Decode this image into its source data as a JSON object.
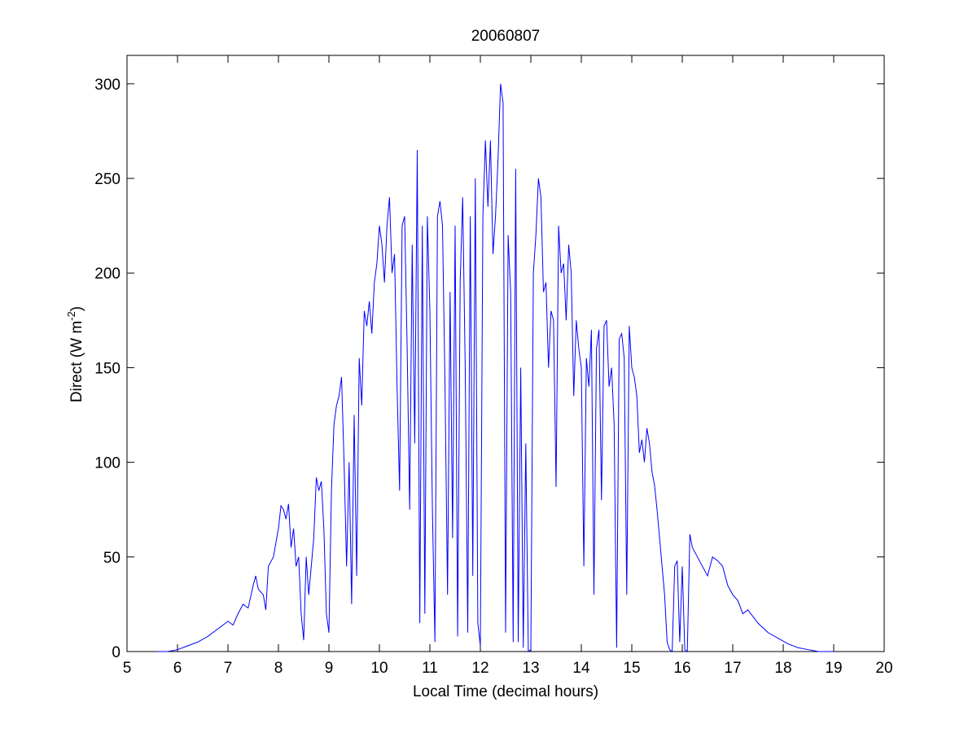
{
  "chart_data": {
    "type": "line",
    "title": "20060807",
    "xlabel": "Local Time (decimal hours)",
    "ylabel": [
      "Direct (W m",
      "-2",
      ")"
    ],
    "xlim": [
      5,
      20
    ],
    "xticks": [
      5,
      6,
      7,
      8,
      9,
      10,
      11,
      12,
      13,
      14,
      15,
      16,
      17,
      18,
      19,
      20
    ],
    "ylim": [
      0,
      315
    ],
    "yticks": [
      0,
      50,
      100,
      150,
      200,
      250,
      300
    ],
    "grid": false,
    "series": [
      {
        "color": "#0000ff",
        "x": [
          5.6,
          5.8,
          6.0,
          6.2,
          6.4,
          6.6,
          6.8,
          7.0,
          7.1,
          7.2,
          7.3,
          7.4,
          7.5,
          7.55,
          7.6,
          7.7,
          7.75,
          7.8,
          7.9,
          8.0,
          8.05,
          8.1,
          8.15,
          8.2,
          8.25,
          8.3,
          8.35,
          8.4,
          8.45,
          8.5,
          8.55,
          8.6,
          8.65,
          8.7,
          8.75,
          8.8,
          8.85,
          8.9,
          8.95,
          9.0,
          9.05,
          9.1,
          9.15,
          9.2,
          9.25,
          9.3,
          9.35,
          9.4,
          9.45,
          9.5,
          9.55,
          9.6,
          9.65,
          9.7,
          9.75,
          9.8,
          9.85,
          9.9,
          9.95,
          10.0,
          10.05,
          10.1,
          10.15,
          10.2,
          10.25,
          10.3,
          10.35,
          10.4,
          10.45,
          10.5,
          10.55,
          10.6,
          10.65,
          10.7,
          10.75,
          10.8,
          10.85,
          10.9,
          10.95,
          11.0,
          11.05,
          11.1,
          11.15,
          11.2,
          11.25,
          11.3,
          11.35,
          11.4,
          11.45,
          11.5,
          11.55,
          11.6,
          11.65,
          11.7,
          11.75,
          11.8,
          11.85,
          11.9,
          11.95,
          12.0,
          12.05,
          12.1,
          12.15,
          12.2,
          12.25,
          12.3,
          12.35,
          12.4,
          12.45,
          12.5,
          12.55,
          12.6,
          12.65,
          12.7,
          12.75,
          12.8,
          12.85,
          12.9,
          12.95,
          13.0,
          13.05,
          13.1,
          13.15,
          13.2,
          13.25,
          13.3,
          13.35,
          13.4,
          13.45,
          13.5,
          13.55,
          13.6,
          13.65,
          13.7,
          13.75,
          13.8,
          13.85,
          13.9,
          13.95,
          14.0,
          14.05,
          14.1,
          14.15,
          14.2,
          14.25,
          14.3,
          14.35,
          14.4,
          14.45,
          14.5,
          14.55,
          14.6,
          14.65,
          14.7,
          14.75,
          14.8,
          14.85,
          14.9,
          14.95,
          15.0,
          15.05,
          15.1,
          15.15,
          15.2,
          15.25,
          15.3,
          15.35,
          15.4,
          15.45,
          15.5,
          15.55,
          15.6,
          15.65,
          15.7,
          15.75,
          15.8,
          15.85,
          15.9,
          15.95,
          16.0,
          16.05,
          16.1,
          16.15,
          16.2,
          16.3,
          16.4,
          16.5,
          16.6,
          16.7,
          16.8,
          16.9,
          17.0,
          17.1,
          17.2,
          17.3,
          17.5,
          17.7,
          17.9,
          18.1,
          18.3,
          18.5,
          18.7,
          18.9,
          19.0
        ],
        "values": [
          0,
          0,
          1,
          3,
          5,
          8,
          12,
          16,
          14,
          20,
          25,
          23,
          35,
          40,
          33,
          30,
          22,
          45,
          50,
          65,
          77,
          75,
          70,
          78,
          55,
          65,
          45,
          50,
          20,
          6,
          50,
          30,
          45,
          60,
          92,
          85,
          90,
          65,
          20,
          10,
          85,
          120,
          130,
          135,
          145,
          100,
          45,
          100,
          25,
          125,
          40,
          155,
          130,
          180,
          172,
          185,
          168,
          195,
          205,
          225,
          215,
          195,
          225,
          240,
          200,
          210,
          140,
          85,
          225,
          230,
          160,
          75,
          215,
          110,
          265,
          15,
          225,
          20,
          230,
          180,
          75,
          5,
          230,
          238,
          225,
          140,
          30,
          190,
          60,
          225,
          8,
          195,
          240,
          150,
          10,
          230,
          40,
          250,
          15,
          3,
          230,
          270,
          235,
          270,
          210,
          230,
          260,
          300,
          290,
          10,
          220,
          190,
          5,
          255,
          5,
          150,
          2,
          110,
          0,
          1,
          200,
          220,
          250,
          240,
          190,
          195,
          150,
          180,
          175,
          87,
          225,
          200,
          205,
          175,
          215,
          200,
          135,
          175,
          160,
          150,
          45,
          155,
          140,
          170,
          30,
          160,
          170,
          80,
          172,
          175,
          140,
          150,
          120,
          2,
          165,
          168,
          155,
          30,
          172,
          150,
          145,
          135,
          105,
          112,
          100,
          118,
          110,
          95,
          88,
          75,
          60,
          45,
          30,
          5,
          1,
          0,
          45,
          48,
          5,
          45,
          1,
          0,
          62,
          55,
          50,
          45,
          40,
          50,
          48,
          45,
          35,
          30,
          27,
          20,
          22,
          15,
          10,
          7,
          4,
          2,
          1,
          0,
          0,
          0
        ]
      }
    ]
  }
}
